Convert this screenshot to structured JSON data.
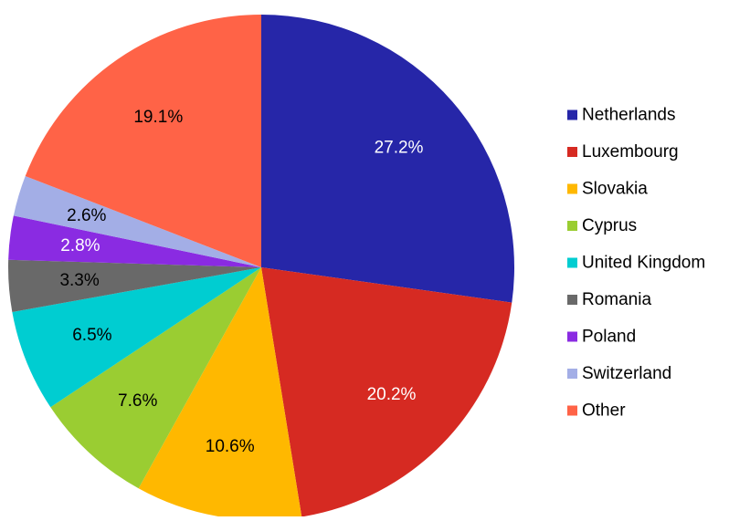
{
  "chart_data": {
    "type": "pie",
    "title": "",
    "legend_position": "right",
    "start_angle_deg": 0,
    "direction": "clockwise",
    "slices": [
      {
        "name": "Netherlands",
        "value": 27.2,
        "label": "27.2%",
        "color": "#2626a8",
        "label_color": "#ffffff"
      },
      {
        "name": "Luxembourg",
        "value": 20.2,
        "label": "20.2%",
        "color": "#d62a22",
        "label_color": "#ffffff"
      },
      {
        "name": "Slovakia",
        "value": 10.6,
        "label": "10.6%",
        "color": "#ffb800",
        "label_color": "#000000"
      },
      {
        "name": "Cyprus",
        "value": 7.6,
        "label": "7.6%",
        "color": "#9acd32",
        "label_color": "#000000"
      },
      {
        "name": "United Kingdom",
        "value": 6.5,
        "label": "6.5%",
        "color": "#00cdd1",
        "label_color": "#000000"
      },
      {
        "name": "Romania",
        "value": 3.3,
        "label": "3.3%",
        "color": "#696969",
        "label_color": "#000000"
      },
      {
        "name": "Poland",
        "value": 2.8,
        "label": "2.8%",
        "color": "#8a2be2",
        "label_color": "#ffffff"
      },
      {
        "name": "Switzerland",
        "value": 2.6,
        "label": "2.6%",
        "color": "#a3aee6",
        "label_color": "#000000"
      },
      {
        "name": "Other",
        "value": 19.1,
        "label": "19.1%",
        "color": "#ff6347",
        "label_color": "#000000"
      }
    ]
  }
}
